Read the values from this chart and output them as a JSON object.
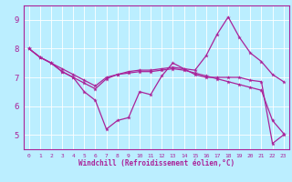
{
  "xlabel": "Windchill (Refroidissement éolien,°C)",
  "background_color": "#bbeeff",
  "line_color": "#aa2299",
  "grid_color": "#ffffff",
  "xlim": [
    -0.5,
    23.5
  ],
  "ylim": [
    4.5,
    9.5
  ],
  "yticks": [
    5,
    6,
    7,
    8,
    9
  ],
  "xticks": [
    0,
    1,
    2,
    3,
    4,
    5,
    6,
    7,
    8,
    9,
    10,
    11,
    12,
    13,
    14,
    15,
    16,
    17,
    18,
    19,
    20,
    21,
    22,
    23
  ],
  "line1_y": [
    8.0,
    7.7,
    7.5,
    7.3,
    7.1,
    6.9,
    6.7,
    7.0,
    7.1,
    7.2,
    7.25,
    7.25,
    7.3,
    7.35,
    7.3,
    7.25,
    7.75,
    8.5,
    9.1,
    8.4,
    7.85,
    7.55,
    7.1,
    6.85
  ],
  "line2_y": [
    8.0,
    7.7,
    7.5,
    7.2,
    7.0,
    6.5,
    6.2,
    5.2,
    5.5,
    5.6,
    6.5,
    6.4,
    7.05,
    7.5,
    7.3,
    7.1,
    7.0,
    7.0,
    7.0,
    7.0,
    6.9,
    6.85,
    4.7,
    5.0
  ],
  "line3_y": [
    8.0,
    7.7,
    7.5,
    7.2,
    7.0,
    6.8,
    6.6,
    6.95,
    7.1,
    7.15,
    7.2,
    7.2,
    7.25,
    7.3,
    7.25,
    7.15,
    7.05,
    6.95,
    6.85,
    6.75,
    6.65,
    6.55,
    5.5,
    5.05
  ]
}
